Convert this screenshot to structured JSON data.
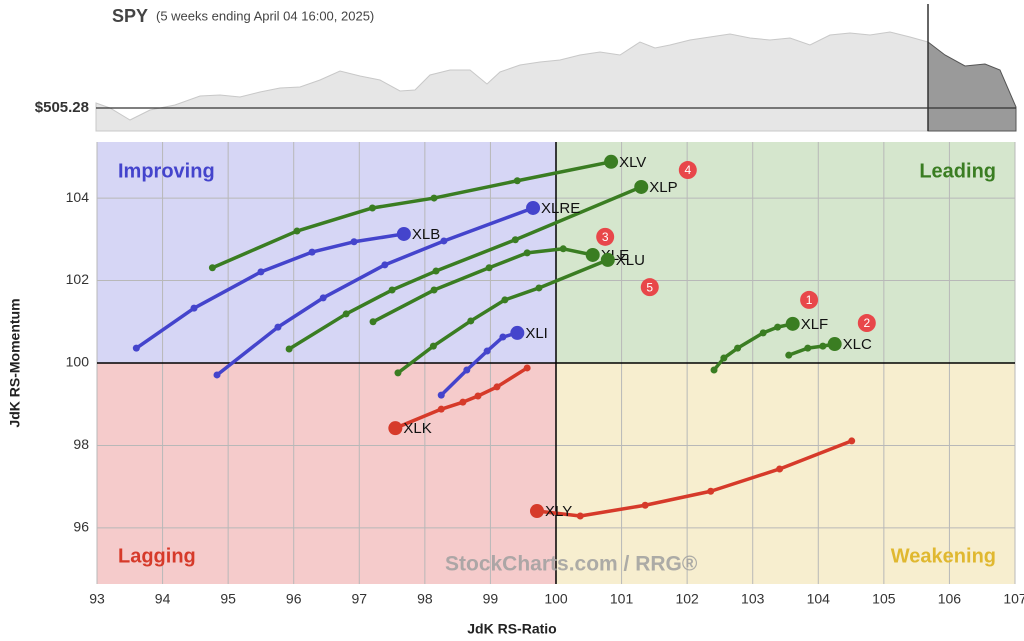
{
  "header": {
    "symbol": "SPY",
    "subtitle": "(5 weeks ending April 04 16:00, 2025)",
    "price_label": "$505.28"
  },
  "chart_data": {
    "type": "rrg",
    "x_label": "JdK RS-Ratio",
    "y_label": "JdK RS-Momentum",
    "xlim": [
      93,
      107
    ],
    "ylim": [
      94.64,
      105.36
    ],
    "xticks": [
      93,
      94,
      95,
      96,
      97,
      98,
      99,
      100,
      101,
      102,
      103,
      104,
      105,
      106,
      107
    ],
    "yticks": [
      96,
      98,
      100,
      102,
      104
    ],
    "grid": true,
    "center": {
      "x": 100,
      "y": 100
    },
    "quadrants": [
      {
        "name": "Improving",
        "corner": "top-left",
        "fill": "#d6d6f5",
        "color": "#4444cc"
      },
      {
        "name": "Leading",
        "corner": "top-right",
        "fill": "#d5e6cd",
        "color": "#3a7d22"
      },
      {
        "name": "Lagging",
        "corner": "bottom-left",
        "fill": "#f5cbcb",
        "color": "#d63a2a"
      },
      {
        "name": "Weakening",
        "corner": "bottom-right",
        "fill": "#f7eecf",
        "color": "#e0b830"
      }
    ],
    "series": [
      {
        "name": "XLV",
        "color": "#3a7d22",
        "x": [
          94.76,
          96.05,
          97.2,
          98.14,
          99.41,
          100.84
        ],
        "y": [
          102.31,
          103.2,
          103.76,
          104.0,
          104.42,
          104.88
        ]
      },
      {
        "name": "XLP",
        "color": "#3a7d22",
        "x": [
          95.93,
          96.8,
          97.5,
          98.17,
          99.38,
          101.3
        ],
        "y": [
          100.34,
          101.19,
          101.77,
          102.23,
          102.99,
          104.27
        ]
      },
      {
        "name": "XLE",
        "color": "#3a7d22",
        "x": [
          97.21,
          98.14,
          98.98,
          99.56,
          100.11,
          100.56
        ],
        "y": [
          101.0,
          101.77,
          102.31,
          102.67,
          102.77,
          102.62
        ]
      },
      {
        "name": "XLU",
        "color": "#3a7d22",
        "x": [
          97.59,
          98.13,
          98.7,
          99.22,
          99.74,
          100.79
        ],
        "y": [
          99.76,
          100.41,
          101.02,
          101.53,
          101.82,
          102.5
        ]
      },
      {
        "name": "XLF",
        "color": "#3a7d22",
        "x": [
          102.41,
          102.56,
          102.77,
          103.16,
          103.38,
          103.61
        ],
        "y": [
          99.83,
          100.12,
          100.36,
          100.73,
          100.87,
          100.95
        ]
      },
      {
        "name": "XLC",
        "color": "#3a7d22",
        "x": [
          103.55,
          103.84,
          104.07,
          104.25
        ],
        "y": [
          100.19,
          100.36,
          100.41,
          100.46
        ]
      },
      {
        "name": "XLY",
        "color": "#d63a2a",
        "x": [
          104.51,
          103.41,
          102.36,
          101.36,
          100.37,
          99.71
        ],
        "y": [
          98.11,
          97.43,
          96.89,
          96.55,
          96.29,
          96.41
        ]
      },
      {
        "name": "XLK",
        "color": "#d63a2a",
        "x": [
          99.56,
          99.1,
          98.81,
          98.58,
          98.25,
          97.55
        ],
        "y": [
          99.88,
          99.42,
          99.2,
          99.05,
          98.88,
          98.42
        ]
      },
      {
        "name": "XLI",
        "color": "#4444cc",
        "x": [
          98.25,
          98.64,
          98.95,
          99.19,
          99.41
        ],
        "y": [
          99.22,
          99.83,
          100.29,
          100.63,
          100.73
        ]
      },
      {
        "name": "XLB",
        "color": "#4444cc",
        "x": [
          93.6,
          94.48,
          95.5,
          96.28,
          96.92,
          97.68
        ],
        "y": [
          100.36,
          101.33,
          102.21,
          102.69,
          102.94,
          103.13
        ]
      },
      {
        "name": "XLRE",
        "color": "#4444cc",
        "x": [
          94.83,
          95.76,
          96.45,
          97.39,
          98.29,
          99.65
        ],
        "y": [
          99.71,
          100.87,
          101.58,
          102.38,
          102.96,
          103.76
        ]
      }
    ],
    "annotations": [
      {
        "label": "1",
        "x": 103.86,
        "y": 101.53
      },
      {
        "label": "2",
        "x": 104.74,
        "y": 100.97
      },
      {
        "label": "3",
        "x": 100.75,
        "y": 103.06
      },
      {
        "label": "4",
        "x": 102.01,
        "y": 104.68
      },
      {
        "label": "5",
        "x": 101.43,
        "y": 101.84
      }
    ],
    "watermark": "StockCharts.com / RRG®"
  }
}
